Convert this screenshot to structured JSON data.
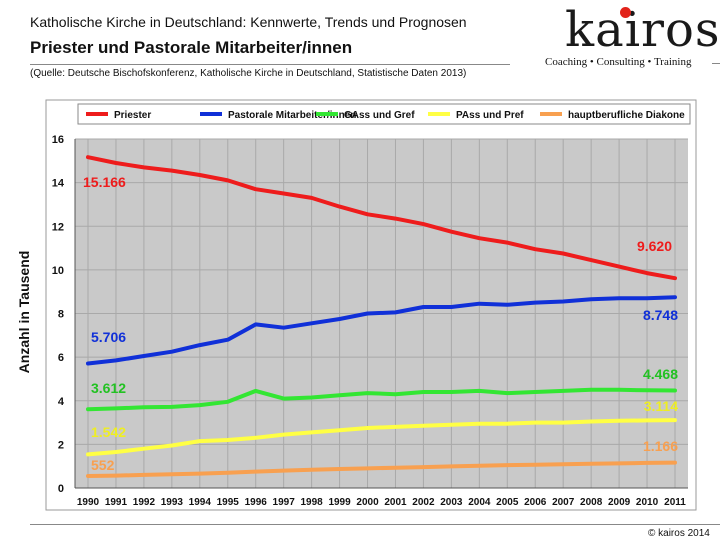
{
  "header": {
    "top_line": "Katholische Kirche in Deutschland: Kennwerte, Trends und Prognosen",
    "title": "Priester und Pastorale Mitarbeiter/innen",
    "source": "(Quelle: Deutsche Bischofskonferenz, Katholische Kirche in Deutschland, Statistische Daten 2013)"
  },
  "logo": {
    "brand": "kairos",
    "tagline": "Coaching • Consulting • Training"
  },
  "footer": {
    "copyright": "© kairos 2014"
  },
  "chart_data": {
    "type": "line",
    "title": "Priester und Pastorale Mitarbeiter/innen",
    "xlabel": "",
    "ylabel": "Anzahl in Tausend",
    "x": [
      "1990",
      "1991",
      "1992",
      "1993",
      "1994",
      "1995",
      "1996",
      "1997",
      "1998",
      "1999",
      "2000",
      "2001",
      "2002",
      "2003",
      "2004",
      "2005",
      "2006",
      "2007",
      "2008",
      "2009",
      "2010",
      "2011"
    ],
    "ylim": [
      0,
      16
    ],
    "yticks": [
      "0",
      "2",
      "4",
      "6",
      "8",
      "10",
      "12",
      "14",
      "16"
    ],
    "grid": true,
    "legend_position": "top",
    "series": [
      {
        "name": "Priester",
        "color": "#ee1c1c",
        "values": [
          15.166,
          14.9,
          14.7,
          14.55,
          14.35,
          14.1,
          13.7,
          13.5,
          13.3,
          12.9,
          12.55,
          12.35,
          12.1,
          11.75,
          11.45,
          11.25,
          10.95,
          10.75,
          10.45,
          10.15,
          9.85,
          9.62
        ],
        "start_label": "15.166",
        "end_label": "9.620"
      },
      {
        "name": "Pastorale Mitarbeiter/innen",
        "color": "#1030d8",
        "values": [
          5.706,
          5.85,
          6.05,
          6.25,
          6.55,
          6.8,
          7.5,
          7.35,
          7.55,
          7.75,
          8.0,
          8.05,
          8.3,
          8.3,
          8.45,
          8.4,
          8.5,
          8.55,
          8.65,
          8.7,
          8.7,
          8.748
        ],
        "start_label": "5.706",
        "end_label": "8.748"
      },
      {
        "name": "GAss und Gref",
        "color": "#33e633",
        "values": [
          3.612,
          3.65,
          3.7,
          3.72,
          3.8,
          3.95,
          4.45,
          4.1,
          4.15,
          4.25,
          4.35,
          4.3,
          4.4,
          4.4,
          4.45,
          4.35,
          4.4,
          4.45,
          4.5,
          4.5,
          4.48,
          4.468
        ],
        "start_label": "3.612",
        "end_label": "4.468"
      },
      {
        "name": "PAss und Pref",
        "color": "#ffff44",
        "values": [
          1.542,
          1.65,
          1.8,
          1.95,
          2.15,
          2.2,
          2.3,
          2.45,
          2.55,
          2.65,
          2.75,
          2.8,
          2.85,
          2.9,
          2.95,
          2.95,
          3.0,
          3.0,
          3.05,
          3.08,
          3.1,
          3.114
        ],
        "start_label": "1.542",
        "end_label": "3.114"
      },
      {
        "name": "hauptberufliche Diakone",
        "color": "#f8a050",
        "values": [
          0.552,
          0.57,
          0.6,
          0.63,
          0.66,
          0.7,
          0.75,
          0.8,
          0.84,
          0.87,
          0.9,
          0.93,
          0.96,
          0.99,
          1.02,
          1.05,
          1.07,
          1.09,
          1.11,
          1.13,
          1.15,
          1.166
        ],
        "start_label": "552",
        "end_label": "1.166"
      }
    ]
  }
}
